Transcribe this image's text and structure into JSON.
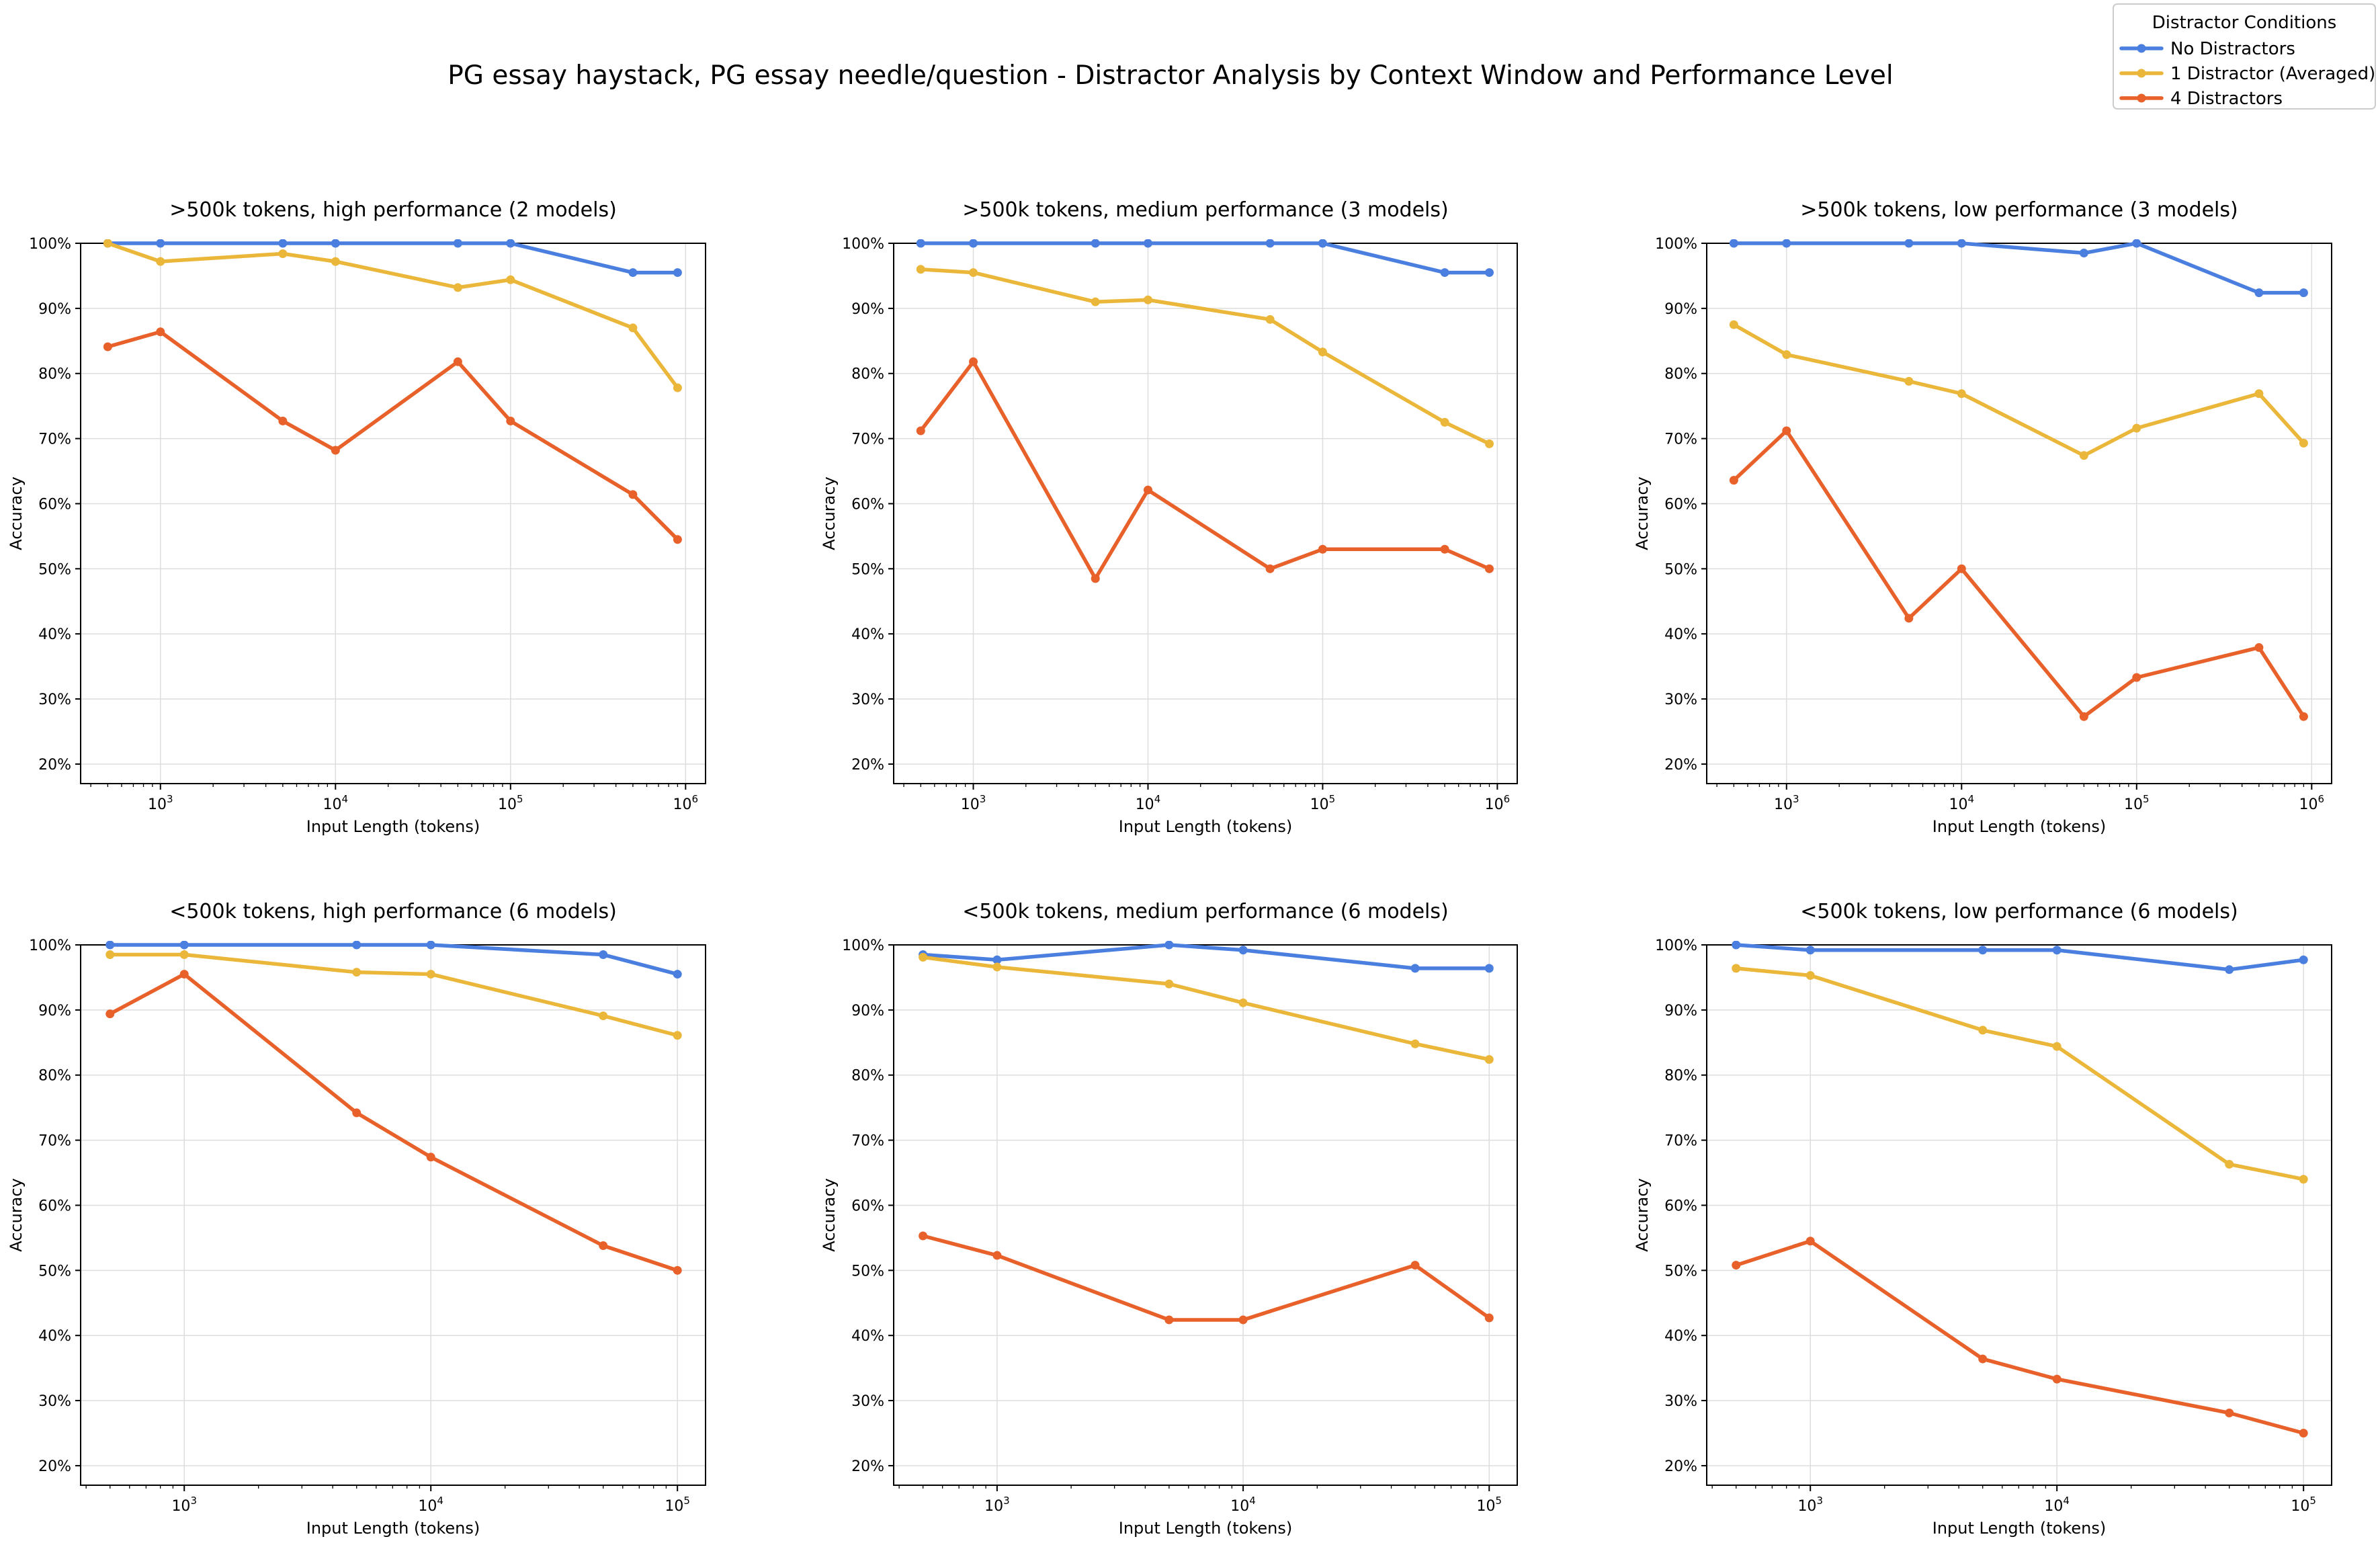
{
  "figure": {
    "title": "PG essay haystack, PG essay needle/question - Distractor Analysis by Context Window and Performance Level"
  },
  "legend": {
    "title": "Distractor Conditions",
    "placement": "top-right",
    "items": [
      {
        "label": "No Distractors",
        "color": "#4a7fe0"
      },
      {
        "label": "1 Distractor (Averaged)",
        "color": "#ebb73a"
      },
      {
        "label": "4 Distractors",
        "color": "#e8612a"
      }
    ]
  },
  "chart_data": [
    {
      "type": "line",
      "title": ">500k tokens, high performance (2 models)",
      "xlabel": "Input Length (tokens)",
      "ylabel": "Accuracy",
      "xscale": "log",
      "xlim": [
        350,
        1300000
      ],
      "ylim": [
        17,
        100
      ],
      "xticks": [
        3,
        4,
        5,
        6
      ],
      "yticks": [
        20,
        30,
        40,
        50,
        60,
        70,
        80,
        90,
        100
      ],
      "grid": true,
      "series": [
        {
          "name": "No Distractors",
          "color": "#4a7fe0",
          "x": [
            500,
            1000,
            5000,
            10000,
            50000,
            100000,
            500000,
            900000
          ],
          "y": [
            100,
            100,
            100,
            100,
            100,
            100,
            95.5,
            95.5
          ]
        },
        {
          "name": "1 Distractor (Averaged)",
          "color": "#ebb73a",
          "x": [
            500,
            1000,
            5000,
            10000,
            50000,
            100000,
            500000,
            900000
          ],
          "y": [
            100,
            97.2,
            98.4,
            97.2,
            93.2,
            94.4,
            87,
            77.8
          ]
        },
        {
          "name": "4 Distractors",
          "color": "#e8612a",
          "x": [
            500,
            1000,
            5000,
            10000,
            50000,
            100000,
            500000,
            900000
          ],
          "y": [
            84.1,
            86.4,
            72.7,
            68.2,
            81.8,
            72.7,
            61.4,
            54.5
          ]
        }
      ]
    },
    {
      "type": "line",
      "title": ">500k tokens, medium performance (3 models)",
      "xlabel": "Input Length (tokens)",
      "ylabel": "Accuracy",
      "xscale": "log",
      "xlim": [
        350,
        1300000
      ],
      "ylim": [
        17,
        100
      ],
      "xticks": [
        3,
        4,
        5,
        6
      ],
      "yticks": [
        20,
        30,
        40,
        50,
        60,
        70,
        80,
        90,
        100
      ],
      "grid": true,
      "series": [
        {
          "name": "No Distractors",
          "color": "#4a7fe0",
          "x": [
            500,
            1000,
            5000,
            10000,
            50000,
            100000,
            500000,
            900000
          ],
          "y": [
            100,
            100,
            100,
            100,
            100,
            100,
            95.5,
            95.5
          ]
        },
        {
          "name": "1 Distractor (Averaged)",
          "color": "#ebb73a",
          "x": [
            500,
            1000,
            5000,
            10000,
            50000,
            100000,
            500000,
            900000
          ],
          "y": [
            96,
            95.5,
            91,
            91.3,
            88.3,
            83.3,
            72.5,
            69.2
          ]
        },
        {
          "name": "4 Distractors",
          "color": "#e8612a",
          "x": [
            500,
            1000,
            5000,
            10000,
            50000,
            100000,
            500000,
            900000
          ],
          "y": [
            71.2,
            81.8,
            48.5,
            62.1,
            50,
            53,
            53,
            50
          ]
        }
      ]
    },
    {
      "type": "line",
      "title": ">500k tokens, low performance (3 models)",
      "xlabel": "Input Length (tokens)",
      "ylabel": "Accuracy",
      "xscale": "log",
      "xlim": [
        350,
        1300000
      ],
      "ylim": [
        17,
        100
      ],
      "xticks": [
        3,
        4,
        5,
        6
      ],
      "yticks": [
        20,
        30,
        40,
        50,
        60,
        70,
        80,
        90,
        100
      ],
      "grid": true,
      "series": [
        {
          "name": "No Distractors",
          "color": "#4a7fe0",
          "x": [
            500,
            1000,
            5000,
            10000,
            50000,
            100000,
            500000,
            900000
          ],
          "y": [
            100,
            100,
            100,
            100,
            98.5,
            100,
            92.4,
            92.4
          ]
        },
        {
          "name": "1 Distractor (Averaged)",
          "color": "#ebb73a",
          "x": [
            500,
            1000,
            5000,
            10000,
            50000,
            100000,
            500000,
            900000
          ],
          "y": [
            87.5,
            82.9,
            78.8,
            76.9,
            67.4,
            71.6,
            76.9,
            69.3
          ]
        },
        {
          "name": "4 Distractors",
          "color": "#e8612a",
          "x": [
            500,
            1000,
            5000,
            10000,
            50000,
            100000,
            500000,
            900000
          ],
          "y": [
            63.6,
            71.2,
            42.4,
            50,
            27.3,
            33.3,
            37.9,
            27.3
          ]
        }
      ]
    },
    {
      "type": "line",
      "title": "<500k tokens, high performance (6 models)",
      "xlabel": "Input Length (tokens)",
      "ylabel": "Accuracy",
      "xscale": "log",
      "xlim": [
        380,
        130000
      ],
      "ylim": [
        17,
        100
      ],
      "xticks": [
        3,
        4,
        5
      ],
      "yticks": [
        20,
        30,
        40,
        50,
        60,
        70,
        80,
        90,
        100
      ],
      "grid": true,
      "series": [
        {
          "name": "No Distractors",
          "color": "#4a7fe0",
          "x": [
            500,
            1000,
            5000,
            10000,
            50000,
            100000
          ],
          "y": [
            100,
            100,
            100,
            100,
            98.5,
            95.5
          ]
        },
        {
          "name": "1 Distractor (Averaged)",
          "color": "#ebb73a",
          "x": [
            500,
            1000,
            5000,
            10000,
            50000,
            100000
          ],
          "y": [
            98.5,
            98.5,
            95.8,
            95.5,
            89.1,
            86.1
          ]
        },
        {
          "name": "4 Distractors",
          "color": "#e8612a",
          "x": [
            500,
            1000,
            5000,
            10000,
            50000,
            100000
          ],
          "y": [
            89.4,
            95.5,
            74.2,
            67.4,
            53.8,
            50
          ]
        }
      ]
    },
    {
      "type": "line",
      "title": "<500k tokens, medium performance (6 models)",
      "xlabel": "Input Length (tokens)",
      "ylabel": "Accuracy",
      "xscale": "log",
      "xlim": [
        380,
        130000
      ],
      "ylim": [
        17,
        100
      ],
      "xticks": [
        3,
        4,
        5
      ],
      "yticks": [
        20,
        30,
        40,
        50,
        60,
        70,
        80,
        90,
        100
      ],
      "grid": true,
      "series": [
        {
          "name": "No Distractors",
          "color": "#4a7fe0",
          "x": [
            500,
            1000,
            5000,
            10000,
            50000,
            100000
          ],
          "y": [
            98.5,
            97.7,
            100,
            99.2,
            96.4,
            96.4
          ]
        },
        {
          "name": "1 Distractor (Averaged)",
          "color": "#ebb73a",
          "x": [
            500,
            1000,
            5000,
            10000,
            50000,
            100000
          ],
          "y": [
            98.1,
            96.6,
            94,
            91.1,
            84.8,
            82.4
          ]
        },
        {
          "name": "4 Distractors",
          "color": "#e8612a",
          "x": [
            500,
            1000,
            5000,
            10000,
            50000,
            100000
          ],
          "y": [
            55.3,
            52.3,
            42.4,
            42.4,
            50.8,
            42.7
          ]
        }
      ]
    },
    {
      "type": "line",
      "title": "<500k tokens, low performance (6 models)",
      "xlabel": "Input Length (tokens)",
      "ylabel": "Accuracy",
      "xscale": "log",
      "xlim": [
        380,
        130000
      ],
      "ylim": [
        17,
        100
      ],
      "xticks": [
        3,
        4,
        5
      ],
      "yticks": [
        20,
        30,
        40,
        50,
        60,
        70,
        80,
        90,
        100
      ],
      "grid": true,
      "series": [
        {
          "name": "No Distractors",
          "color": "#4a7fe0",
          "x": [
            500,
            1000,
            5000,
            10000,
            50000,
            100000
          ],
          "y": [
            100,
            99.2,
            99.2,
            99.2,
            96.2,
            97.7
          ]
        },
        {
          "name": "1 Distractor (Averaged)",
          "color": "#ebb73a",
          "x": [
            500,
            1000,
            5000,
            10000,
            50000,
            100000
          ],
          "y": [
            96.4,
            95.3,
            86.9,
            84.4,
            66.3,
            64
          ]
        },
        {
          "name": "4 Distractors",
          "color": "#e8612a",
          "x": [
            500,
            1000,
            5000,
            10000,
            50000,
            100000
          ],
          "y": [
            50.8,
            54.5,
            36.4,
            33.3,
            28.1,
            25
          ]
        }
      ]
    }
  ]
}
